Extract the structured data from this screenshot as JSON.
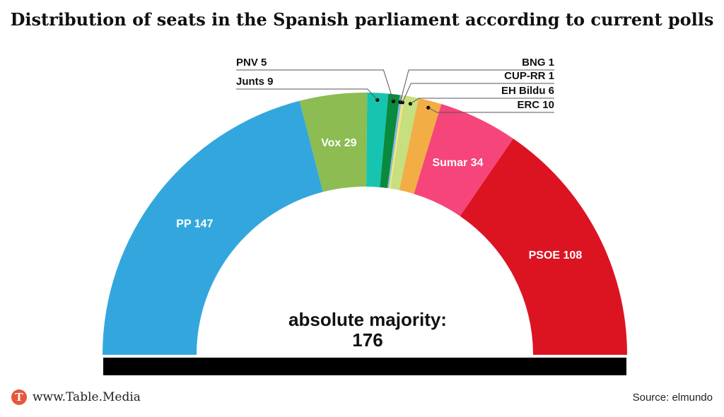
{
  "title": "Distribution of seats in the Spanish parliament according to current polls",
  "chart_data": {
    "type": "parliament-semicircle",
    "title": "Distribution of seats in the Spanish parliament according to current polls",
    "total_seats": 350,
    "majority_label": "absolute majority:",
    "majority_value": "176",
    "parties": [
      {
        "name": "PP",
        "seats": 147,
        "color": "#33a7dd",
        "label": "PP 147",
        "label_style": "inside"
      },
      {
        "name": "Vox",
        "seats": 29,
        "color": "#8cbc52",
        "label": "Vox 29",
        "label_style": "inside"
      },
      {
        "name": "Junts",
        "seats": 9,
        "color": "#17c4b0",
        "label": "Junts 9",
        "label_style": "left"
      },
      {
        "name": "PNV",
        "seats": 5,
        "color": "#0a8a3c",
        "label": "PNV 5",
        "label_style": "left"
      },
      {
        "name": "BNG",
        "seats": 1,
        "color": "#86b8e4",
        "label": "BNG 1",
        "label_style": "right"
      },
      {
        "name": "CUP-RR",
        "seats": 1,
        "color": "#f6e479",
        "label": "CUP-RR 1",
        "label_style": "right"
      },
      {
        "name": "EH Bildu",
        "seats": 6,
        "color": "#c6df7f",
        "label": "EH Bildu 6",
        "label_style": "right"
      },
      {
        "name": "ERC",
        "seats": 10,
        "color": "#f2ad44",
        "label": "ERC 10",
        "label_style": "right"
      },
      {
        "name": "Sumar",
        "seats": 34,
        "color": "#f6457a",
        "label": "Sumar 34",
        "label_style": "inside"
      },
      {
        "name": "PSOE",
        "seats": 108,
        "color": "#dc1422",
        "label": "PSOE 108",
        "label_style": "inside"
      }
    ]
  },
  "footer": {
    "logo_letter": "T",
    "brand": "www.Table.Media",
    "source": "Source: elmundo"
  }
}
